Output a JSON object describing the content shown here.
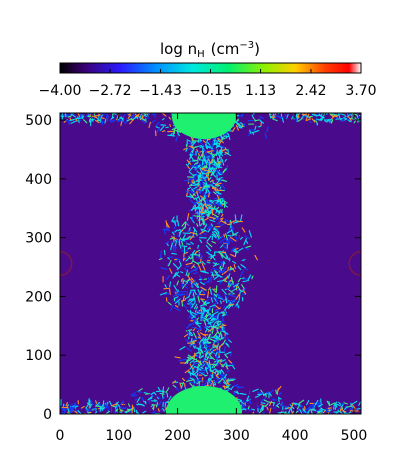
{
  "chart_data": {
    "type": "heatmap",
    "title": "",
    "xlabel": "",
    "ylabel": "",
    "xlim": [
      0,
      512
    ],
    "ylim": [
      0,
      512
    ],
    "x_ticks": [
      0,
      100,
      200,
      300,
      400,
      500
    ],
    "y_ticks": [
      0,
      100,
      200,
      300,
      400,
      500
    ],
    "colorbar": {
      "title_main": "log n",
      "title_sub": "H",
      "title_unit_open": "(cm",
      "title_unit_exp": "−3",
      "title_unit_close": ")",
      "range": [
        -4.0,
        3.7
      ],
      "tick_labels": [
        "−4.00",
        "−2.72",
        "−1.43",
        "−0.15",
        "1.13",
        "2.42",
        "3.70"
      ],
      "tick_values": [
        -4.0,
        -2.72,
        -1.43,
        -0.15,
        1.13,
        2.42,
        3.7
      ],
      "colormap": "rainbow (black–purple–blue–cyan–green–yellow–red–white)"
    },
    "background_value": -3.5,
    "structures": [
      {
        "name": "central filament",
        "x_center": 250,
        "y_range": [
          0,
          512
        ],
        "half_width": [
          60,
          120
        ]
      },
      {
        "name": "top clump",
        "x_center": 245,
        "y_center": 505,
        "value": 0.5
      },
      {
        "name": "bottom clump",
        "x_center": 245,
        "y_center": 0,
        "value": 0.5
      },
      {
        "name": "left ring",
        "x_center": 0,
        "y_center": 256,
        "radius": 20
      },
      {
        "name": "right ring",
        "x_center": 512,
        "y_center": 256,
        "radius": 20
      }
    ]
  },
  "colors": {
    "background": "#4a0a8c",
    "ring": "#7a1a4a",
    "clump": "#20f070",
    "cyan": "#00e0f0",
    "blue": "#1040ff",
    "green": "#40f080",
    "orange": "#ff9020"
  }
}
